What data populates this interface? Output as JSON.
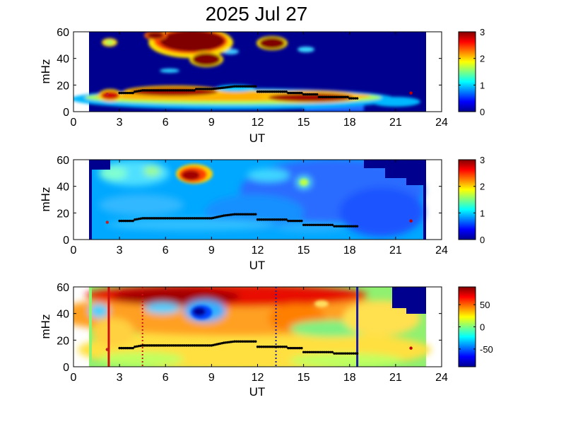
{
  "title": "2025 Jul 27",
  "chart_data": [
    {
      "type": "heatmap",
      "panel": "top",
      "xlabel": "UT",
      "ylabel": "mHz",
      "xlim": [
        0,
        24
      ],
      "ylim": [
        0,
        60
      ],
      "xticks": [
        "0",
        "3",
        "6",
        "9",
        "12",
        "15",
        "18",
        "21",
        "24"
      ],
      "yticks": [
        "0",
        "20",
        "40",
        "60"
      ],
      "colorbar": {
        "range": [
          0,
          3
        ],
        "ticks": [
          "0",
          "1",
          "2",
          "3"
        ]
      },
      "data_window": [
        1,
        23
      ],
      "ridge": [
        [
          2.2,
          13
        ],
        [
          3,
          14
        ],
        [
          4,
          15
        ],
        [
          4.5,
          16
        ],
        [
          6,
          16
        ],
        [
          7,
          16
        ],
        [
          8,
          17
        ],
        [
          9,
          17
        ],
        [
          9.8,
          18
        ],
        [
          10.5,
          19
        ],
        [
          11,
          19
        ],
        [
          12,
          15
        ],
        [
          13,
          15
        ],
        [
          14,
          14
        ],
        [
          15,
          13
        ],
        [
          16,
          11
        ],
        [
          17,
          11
        ],
        [
          18,
          10
        ],
        [
          18.5,
          10
        ],
        [
          22,
          14
        ]
      ]
    },
    {
      "type": "heatmap",
      "panel": "middle",
      "xlabel": "UT",
      "ylabel": "mHz",
      "xlim": [
        0,
        24
      ],
      "ylim": [
        0,
        60
      ],
      "xticks": [
        "0",
        "3",
        "6",
        "9",
        "12",
        "15",
        "18",
        "21",
        "24"
      ],
      "yticks": [
        "0",
        "20",
        "40",
        "60"
      ],
      "colorbar": {
        "range": [
          0,
          3
        ],
        "ticks": [
          "0",
          "1",
          "2",
          "3"
        ]
      },
      "data_window": [
        1,
        23
      ],
      "ridge": [
        [
          2.2,
          13
        ],
        [
          3,
          14
        ],
        [
          4,
          15
        ],
        [
          4.5,
          16
        ],
        [
          6,
          16
        ],
        [
          7,
          16
        ],
        [
          8,
          16
        ],
        [
          9,
          16
        ],
        [
          9.8,
          18
        ],
        [
          10.5,
          19
        ],
        [
          11,
          19
        ],
        [
          12,
          15
        ],
        [
          13,
          15
        ],
        [
          14,
          14
        ],
        [
          15,
          11
        ],
        [
          16,
          11
        ],
        [
          17,
          10
        ],
        [
          18,
          10
        ],
        [
          18.5,
          10
        ],
        [
          22,
          14
        ]
      ]
    },
    {
      "type": "heatmap",
      "panel": "bottom",
      "xlabel": "UT",
      "ylabel": "mHz",
      "xlim": [
        0,
        24
      ],
      "ylim": [
        0,
        60
      ],
      "xticks": [
        "0",
        "3",
        "6",
        "9",
        "12",
        "15",
        "18",
        "21",
        "24"
      ],
      "yticks": [
        "0",
        "20",
        "40",
        "60"
      ],
      "colorbar": {
        "range": [
          -90,
          90
        ],
        "ticks": [
          "-50",
          "0",
          "50"
        ]
      },
      "data_window": [
        1,
        23
      ],
      "ridge": [
        [
          2.2,
          13
        ],
        [
          3,
          14
        ],
        [
          4,
          15
        ],
        [
          4.5,
          16
        ],
        [
          6,
          16
        ],
        [
          7,
          16
        ],
        [
          8,
          16
        ],
        [
          9,
          16
        ],
        [
          9.8,
          18
        ],
        [
          10.5,
          19
        ],
        [
          11,
          19
        ],
        [
          12,
          15
        ],
        [
          13,
          15
        ],
        [
          14,
          14
        ],
        [
          15,
          11
        ],
        [
          16,
          11
        ],
        [
          17,
          10
        ],
        [
          18,
          10
        ],
        [
          18.5,
          10
        ],
        [
          22,
          14
        ]
      ],
      "vertical_lines": [
        {
          "x": 2.3,
          "style": "solid",
          "color": "#d01010"
        },
        {
          "x": 4.5,
          "style": "dotted",
          "color": "#d01010"
        },
        {
          "x": 13.2,
          "style": "dotted",
          "color": "#1a1aa0"
        },
        {
          "x": 18.5,
          "style": "solid",
          "color": "#1a1aa0"
        }
      ]
    }
  ]
}
